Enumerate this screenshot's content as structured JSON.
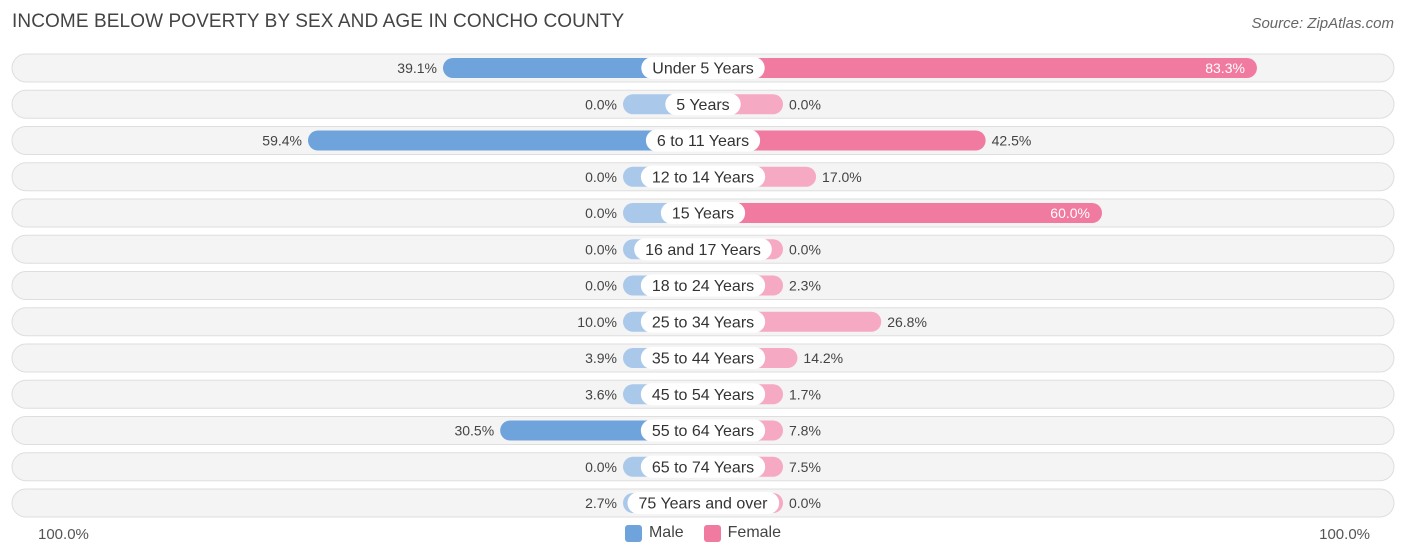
{
  "title": "INCOME BELOW POVERTY BY SEX AND AGE IN CONCHO COUNTY",
  "source": "Source: ZipAtlas.com",
  "axis": {
    "left_label": "100.0%",
    "right_label": "100.0%"
  },
  "legend": [
    {
      "label": "Male",
      "color": "#6fa3dc"
    },
    {
      "label": "Female",
      "color": "#f07aa0"
    }
  ],
  "colors": {
    "male_strong": "#6fa3dc",
    "male_light": "#aac8ea",
    "female_strong": "#f07aa0",
    "female_light": "#f5a9c2",
    "row_bg": "#efefef"
  },
  "chart_data": {
    "type": "bar",
    "orientation": "horizontal-diverging",
    "title": "INCOME BELOW POVERTY BY SEX AND AGE IN CONCHO COUNTY",
    "xlim": [
      -100,
      100
    ],
    "categories": [
      "Under 5 Years",
      "5 Years",
      "6 to 11 Years",
      "12 to 14 Years",
      "15 Years",
      "16 and 17 Years",
      "18 to 24 Years",
      "25 to 34 Years",
      "35 to 44 Years",
      "45 to 54 Years",
      "55 to 64 Years",
      "65 to 74 Years",
      "75 Years and over"
    ],
    "series": [
      {
        "name": "Male",
        "values": [
          39.1,
          0.0,
          59.4,
          0.0,
          0.0,
          0.0,
          0.0,
          10.0,
          3.9,
          3.6,
          30.5,
          0.0,
          2.7
        ],
        "labels": [
          "39.1%",
          "0.0%",
          "59.4%",
          "0.0%",
          "0.0%",
          "0.0%",
          "0.0%",
          "10.0%",
          "3.9%",
          "3.6%",
          "30.5%",
          "0.0%",
          "2.7%"
        ]
      },
      {
        "name": "Female",
        "values": [
          83.3,
          0.0,
          42.5,
          17.0,
          60.0,
          0.0,
          2.3,
          26.8,
          14.2,
          1.7,
          7.8,
          7.5,
          0.0
        ],
        "labels": [
          "83.3%",
          "0.0%",
          "42.5%",
          "17.0%",
          "60.0%",
          "0.0%",
          "2.3%",
          "26.8%",
          "14.2%",
          "1.7%",
          "7.8%",
          "7.5%",
          "0.0%"
        ]
      }
    ]
  }
}
